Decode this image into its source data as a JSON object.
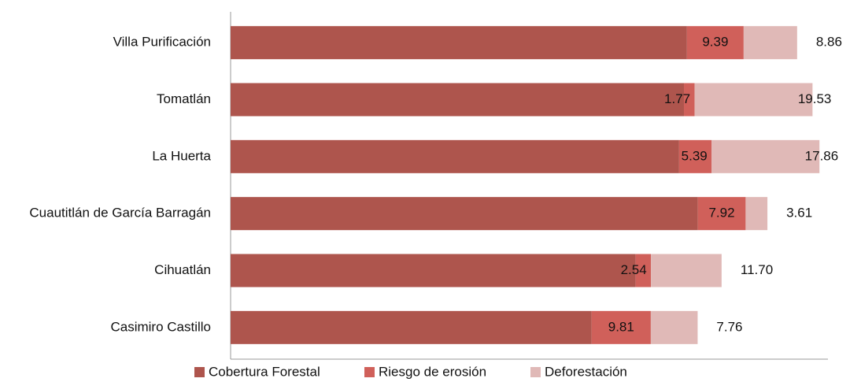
{
  "chart_data": {
    "type": "stacked-bar-horizontal",
    "categories": [
      "Villa Purificación",
      "Tomatlán",
      "La Huerta",
      "Cuautitlán de García Barragán",
      "Cihuatlán",
      "Casimiro Castillo"
    ],
    "series": [
      {
        "name": "Cobertura Forestal",
        "color": "#ae554d",
        "values": [
          75.6,
          75.1,
          74.3,
          77.4,
          67.1,
          59.8
        ]
      },
      {
        "name": "Riesgo de erosión",
        "color": "#d0605a",
        "values": [
          9.39,
          1.77,
          5.39,
          7.92,
          2.54,
          9.81
        ],
        "value_labels": [
          "9.39",
          "1.77",
          "5.39",
          "7.92",
          "2.54",
          "9.81"
        ]
      },
      {
        "name": "Deforestación",
        "color": "#e0b9b7",
        "values": [
          8.86,
          19.53,
          17.86,
          3.61,
          11.7,
          7.76
        ],
        "value_labels": [
          "8.86",
          "19.53",
          "17.86",
          "3.61",
          "11.70",
          "7.76"
        ]
      }
    ],
    "xlim": [
      0,
      100
    ],
    "legend": "bottom"
  }
}
